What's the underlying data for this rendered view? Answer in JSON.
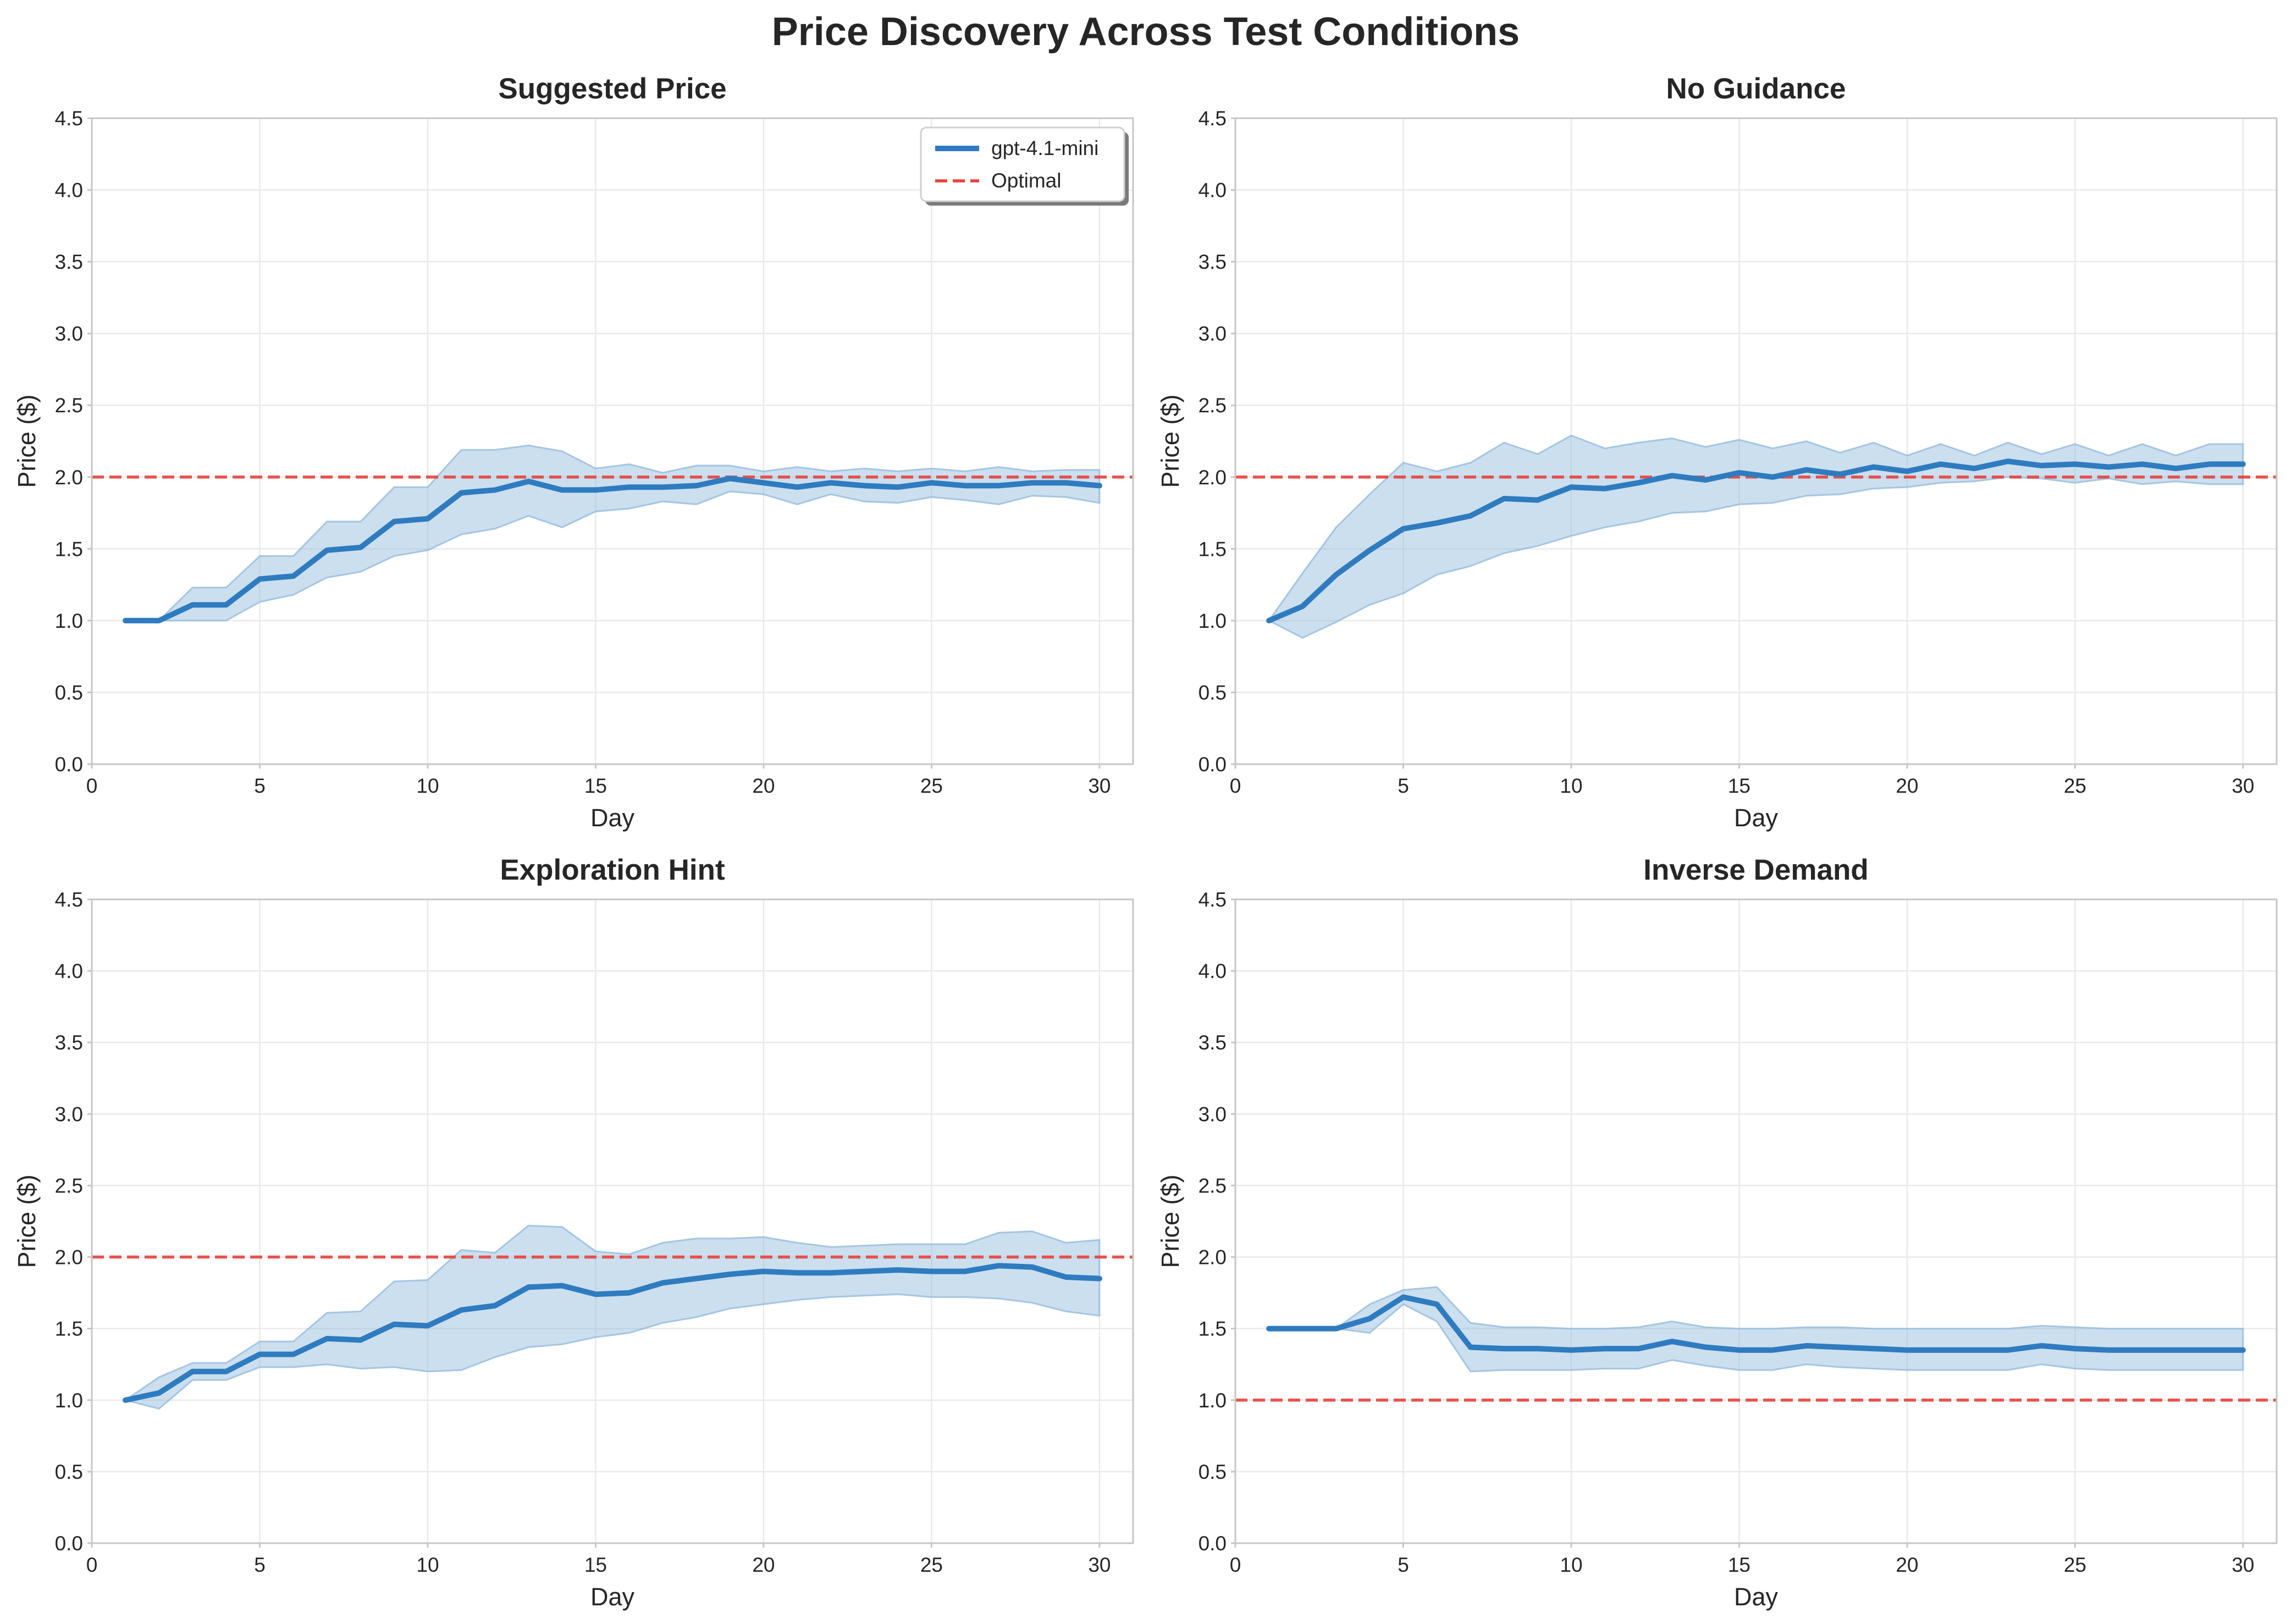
{
  "figure": {
    "title": "Price Discovery Across Test Conditions"
  },
  "colors": {
    "series": "#2f7bbf",
    "band": "#8fb8dc",
    "optimal": "#e8413c",
    "grid": "#e9e9e9",
    "spine": "#c6c6c6"
  },
  "legend": {
    "placement": "top-right",
    "panel": 0,
    "series_label": "gpt-4.1-mini",
    "optimal_label": "Optimal"
  },
  "chart_data": [
    {
      "type": "line",
      "title": "Suggested Price",
      "xlabel": "Day",
      "ylabel": "Price ($)",
      "xlim": [
        0,
        31
      ],
      "ylim": [
        0,
        4.5
      ],
      "xticks": [
        "0",
        "5",
        "10",
        "15",
        "20",
        "25",
        "30"
      ],
      "yticks": [
        "0.0",
        "0.5",
        "1.0",
        "1.5",
        "2.0",
        "2.5",
        "3.0",
        "3.5",
        "4.0",
        "4.5"
      ],
      "grid": true,
      "optimal": 2.0,
      "x": [
        1,
        2,
        3,
        4,
        5,
        6,
        7,
        8,
        9,
        10,
        11,
        12,
        13,
        14,
        15,
        16,
        17,
        18,
        19,
        20,
        21,
        22,
        23,
        24,
        25,
        26,
        27,
        28,
        29,
        30
      ],
      "series": [
        {
          "name": "gpt-4.1-mini",
          "values": [
            1.0,
            1.0,
            1.11,
            1.11,
            1.29,
            1.31,
            1.49,
            1.51,
            1.69,
            1.71,
            1.89,
            1.91,
            1.97,
            1.91,
            1.91,
            1.93,
            1.93,
            1.94,
            1.99,
            1.96,
            1.93,
            1.96,
            1.94,
            1.93,
            1.96,
            1.94,
            1.94,
            1.96,
            1.96,
            1.94
          ],
          "upper": [
            1.0,
            1.0,
            1.23,
            1.23,
            1.45,
            1.45,
            1.69,
            1.69,
            1.93,
            1.93,
            2.19,
            2.19,
            2.22,
            2.18,
            2.06,
            2.09,
            2.03,
            2.08,
            2.08,
            2.04,
            2.07,
            2.04,
            2.06,
            2.04,
            2.06,
            2.04,
            2.07,
            2.04,
            2.05,
            2.05
          ],
          "lower": [
            1.0,
            1.0,
            1.0,
            1.0,
            1.13,
            1.18,
            1.3,
            1.34,
            1.45,
            1.49,
            1.6,
            1.64,
            1.73,
            1.65,
            1.76,
            1.78,
            1.83,
            1.81,
            1.9,
            1.88,
            1.81,
            1.88,
            1.83,
            1.82,
            1.86,
            1.84,
            1.81,
            1.87,
            1.86,
            1.82
          ]
        }
      ]
    },
    {
      "type": "line",
      "title": "No Guidance",
      "xlabel": "Day",
      "ylabel": "Price ($)",
      "xlim": [
        0,
        31
      ],
      "ylim": [
        0,
        4.5
      ],
      "xticks": [
        "0",
        "5",
        "10",
        "15",
        "20",
        "25",
        "30"
      ],
      "yticks": [
        "0.0",
        "0.5",
        "1.0",
        "1.5",
        "2.0",
        "2.5",
        "3.0",
        "3.5",
        "4.0",
        "4.5"
      ],
      "grid": true,
      "optimal": 2.0,
      "x": [
        1,
        2,
        3,
        4,
        5,
        6,
        7,
        8,
        9,
        10,
        11,
        12,
        13,
        14,
        15,
        16,
        17,
        18,
        19,
        20,
        21,
        22,
        23,
        24,
        25,
        26,
        27,
        28,
        29,
        30
      ],
      "series": [
        {
          "name": "gpt-4.1-mini",
          "values": [
            1.0,
            1.1,
            1.32,
            1.49,
            1.64,
            1.68,
            1.73,
            1.85,
            1.84,
            1.93,
            1.92,
            1.96,
            2.01,
            1.98,
            2.03,
            2.0,
            2.05,
            2.02,
            2.07,
            2.04,
            2.09,
            2.06,
            2.11,
            2.08,
            2.09,
            2.07,
            2.09,
            2.06,
            2.09,
            2.09
          ],
          "upper": [
            1.0,
            1.33,
            1.65,
            1.88,
            2.1,
            2.04,
            2.1,
            2.24,
            2.16,
            2.29,
            2.2,
            2.24,
            2.27,
            2.21,
            2.26,
            2.2,
            2.25,
            2.17,
            2.24,
            2.15,
            2.23,
            2.15,
            2.24,
            2.16,
            2.23,
            2.15,
            2.23,
            2.15,
            2.23,
            2.23
          ],
          "lower": [
            1.0,
            0.88,
            0.99,
            1.11,
            1.19,
            1.32,
            1.38,
            1.47,
            1.52,
            1.59,
            1.65,
            1.69,
            1.75,
            1.76,
            1.81,
            1.82,
            1.87,
            1.88,
            1.92,
            1.93,
            1.96,
            1.97,
            2.0,
            1.99,
            1.96,
            1.99,
            1.95,
            1.97,
            1.95,
            1.95
          ]
        }
      ]
    },
    {
      "type": "line",
      "title": "Exploration Hint",
      "xlabel": "Day",
      "ylabel": "Price ($)",
      "xlim": [
        0,
        31
      ],
      "ylim": [
        0,
        4.5
      ],
      "xticks": [
        "0",
        "5",
        "10",
        "15",
        "20",
        "25",
        "30"
      ],
      "yticks": [
        "0.0",
        "0.5",
        "1.0",
        "1.5",
        "2.0",
        "2.5",
        "3.0",
        "3.5",
        "4.0",
        "4.5"
      ],
      "grid": true,
      "optimal": 2.0,
      "x": [
        1,
        2,
        3,
        4,
        5,
        6,
        7,
        8,
        9,
        10,
        11,
        12,
        13,
        14,
        15,
        16,
        17,
        18,
        19,
        20,
        21,
        22,
        23,
        24,
        25,
        26,
        27,
        28,
        29,
        30
      ],
      "series": [
        {
          "name": "gpt-4.1-mini",
          "values": [
            1.0,
            1.05,
            1.2,
            1.2,
            1.32,
            1.32,
            1.43,
            1.42,
            1.53,
            1.52,
            1.63,
            1.66,
            1.79,
            1.8,
            1.74,
            1.75,
            1.82,
            1.85,
            1.88,
            1.9,
            1.89,
            1.89,
            1.9,
            1.91,
            1.9,
            1.9,
            1.94,
            1.93,
            1.86,
            1.85
          ],
          "upper": [
            1.0,
            1.16,
            1.26,
            1.26,
            1.41,
            1.41,
            1.61,
            1.62,
            1.83,
            1.84,
            2.05,
            2.03,
            2.22,
            2.21,
            2.04,
            2.02,
            2.1,
            2.13,
            2.13,
            2.14,
            2.1,
            2.07,
            2.08,
            2.09,
            2.09,
            2.09,
            2.17,
            2.18,
            2.1,
            2.12
          ],
          "lower": [
            1.0,
            0.94,
            1.14,
            1.14,
            1.23,
            1.23,
            1.25,
            1.22,
            1.23,
            1.2,
            1.21,
            1.3,
            1.37,
            1.39,
            1.44,
            1.47,
            1.54,
            1.58,
            1.64,
            1.67,
            1.7,
            1.72,
            1.73,
            1.74,
            1.72,
            1.72,
            1.71,
            1.68,
            1.62,
            1.59
          ]
        }
      ]
    },
    {
      "type": "line",
      "title": "Inverse Demand",
      "xlabel": "Day",
      "ylabel": "Price ($)",
      "xlim": [
        0,
        31
      ],
      "ylim": [
        0,
        4.5
      ],
      "xticks": [
        "0",
        "5",
        "10",
        "15",
        "20",
        "25",
        "30"
      ],
      "yticks": [
        "0.0",
        "0.5",
        "1.0",
        "1.5",
        "2.0",
        "2.5",
        "3.0",
        "3.5",
        "4.0",
        "4.5"
      ],
      "grid": true,
      "optimal": 1.0,
      "x": [
        1,
        2,
        3,
        4,
        5,
        6,
        7,
        8,
        9,
        10,
        11,
        12,
        13,
        14,
        15,
        16,
        17,
        18,
        19,
        20,
        21,
        22,
        23,
        24,
        25,
        26,
        27,
        28,
        29,
        30
      ],
      "series": [
        {
          "name": "gpt-4.1-mini",
          "values": [
            1.5,
            1.5,
            1.5,
            1.57,
            1.72,
            1.67,
            1.37,
            1.36,
            1.36,
            1.35,
            1.36,
            1.36,
            1.41,
            1.37,
            1.35,
            1.35,
            1.38,
            1.37,
            1.36,
            1.35,
            1.35,
            1.35,
            1.35,
            1.38,
            1.36,
            1.35,
            1.35,
            1.35,
            1.35,
            1.35
          ],
          "upper": [
            1.5,
            1.5,
            1.5,
            1.67,
            1.77,
            1.79,
            1.54,
            1.51,
            1.51,
            1.5,
            1.5,
            1.51,
            1.55,
            1.51,
            1.5,
            1.5,
            1.51,
            1.51,
            1.5,
            1.5,
            1.5,
            1.5,
            1.5,
            1.52,
            1.51,
            1.5,
            1.5,
            1.5,
            1.5,
            1.5
          ],
          "lower": [
            1.5,
            1.5,
            1.5,
            1.47,
            1.67,
            1.55,
            1.2,
            1.21,
            1.21,
            1.21,
            1.22,
            1.22,
            1.28,
            1.24,
            1.21,
            1.21,
            1.25,
            1.23,
            1.22,
            1.21,
            1.21,
            1.21,
            1.21,
            1.25,
            1.22,
            1.21,
            1.21,
            1.21,
            1.21,
            1.21
          ]
        }
      ]
    }
  ]
}
